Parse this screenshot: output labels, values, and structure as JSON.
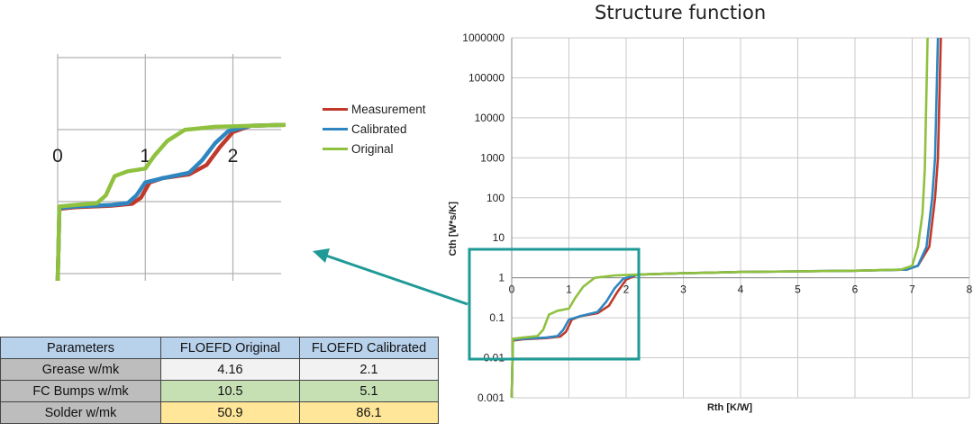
{
  "chart_data": [
    {
      "type": "line",
      "title": "Structure function",
      "xlabel": "Rth [K/W]",
      "ylabel": "Cth [W*s/K]",
      "xlim": [
        0,
        8
      ],
      "ylim": [
        0.001,
        1000000
      ],
      "yscale": "log",
      "xticks": [
        "0",
        "1",
        "2",
        "3",
        "4",
        "5",
        "6",
        "7",
        "8"
      ],
      "yticks": [
        "0.001",
        "0.01",
        "0.1",
        "1",
        "10",
        "100",
        "1000",
        "10000",
        "100000",
        "1000000"
      ],
      "grid": true,
      "series": [
        {
          "name": "Measurement",
          "color": "#c0392b",
          "points": [
            [
              0,
              0.001
            ],
            [
              0.01,
              0.005
            ],
            [
              0.02,
              0.027
            ],
            [
              0.2,
              0.029
            ],
            [
              0.6,
              0.031
            ],
            [
              0.85,
              0.034
            ],
            [
              0.95,
              0.045
            ],
            [
              1.05,
              0.09
            ],
            [
              1.2,
              0.11
            ],
            [
              1.5,
              0.13
            ],
            [
              1.7,
              0.2
            ],
            [
              1.85,
              0.45
            ],
            [
              2.0,
              0.9
            ],
            [
              2.2,
              1.2
            ],
            [
              3,
              1.3
            ],
            [
              4,
              1.4
            ],
            [
              5,
              1.45
            ],
            [
              6,
              1.5
            ],
            [
              6.9,
              1.6
            ],
            [
              7.1,
              2
            ],
            [
              7.3,
              6
            ],
            [
              7.4,
              100
            ],
            [
              7.45,
              1000
            ],
            [
              7.5,
              1000000
            ]
          ]
        },
        {
          "name": "Calibrated",
          "color": "#2e86c1",
          "points": [
            [
              0,
              0.001
            ],
            [
              0.01,
              0.005
            ],
            [
              0.02,
              0.028
            ],
            [
              0.2,
              0.03
            ],
            [
              0.6,
              0.032
            ],
            [
              0.8,
              0.035
            ],
            [
              0.9,
              0.05
            ],
            [
              1.0,
              0.09
            ],
            [
              1.2,
              0.11
            ],
            [
              1.5,
              0.14
            ],
            [
              1.65,
              0.25
            ],
            [
              1.8,
              0.55
            ],
            [
              1.95,
              0.95
            ],
            [
              2.2,
              1.2
            ],
            [
              3,
              1.3
            ],
            [
              4,
              1.4
            ],
            [
              5,
              1.45
            ],
            [
              6,
              1.5
            ],
            [
              6.9,
              1.6
            ],
            [
              7.1,
              2
            ],
            [
              7.25,
              6
            ],
            [
              7.35,
              100
            ],
            [
              7.4,
              1000
            ],
            [
              7.45,
              1000000
            ]
          ]
        },
        {
          "name": "Original",
          "color": "#8fc13e",
          "points": [
            [
              0,
              0.001
            ],
            [
              0.01,
              0.005
            ],
            [
              0.02,
              0.03
            ],
            [
              0.2,
              0.032
            ],
            [
              0.45,
              0.035
            ],
            [
              0.55,
              0.05
            ],
            [
              0.65,
              0.12
            ],
            [
              0.8,
              0.15
            ],
            [
              1.0,
              0.17
            ],
            [
              1.1,
              0.3
            ],
            [
              1.25,
              0.6
            ],
            [
              1.45,
              1.0
            ],
            [
              1.8,
              1.15
            ],
            [
              2.2,
              1.2
            ],
            [
              3,
              1.3
            ],
            [
              4,
              1.4
            ],
            [
              5,
              1.45
            ],
            [
              6,
              1.5
            ],
            [
              6.8,
              1.6
            ],
            [
              7.0,
              2
            ],
            [
              7.1,
              6
            ],
            [
              7.18,
              40
            ],
            [
              7.22,
              500
            ],
            [
              7.27,
              1000000
            ]
          ]
        }
      ]
    },
    {
      "type": "line",
      "title": "",
      "xlim": [
        0,
        2.6
      ],
      "xticks": [
        "0",
        "1",
        "2"
      ],
      "grid": true,
      "series": [
        {
          "name": "Measurement",
          "color": "#c0392b"
        },
        {
          "name": "Calibrated",
          "color": "#2e86c1"
        },
        {
          "name": "Original",
          "color": "#8fc13e"
        }
      ]
    }
  ],
  "legend": {
    "items": [
      {
        "label": "Measurement",
        "color": "#c0392b"
      },
      {
        "label": "Calibrated",
        "color": "#2e86c1"
      },
      {
        "label": "Original",
        "color": "#8fc13e"
      }
    ]
  },
  "table": {
    "headers": [
      "Parameters",
      "FLOEFD Original",
      "FLOEFD Calibrated"
    ],
    "rows": [
      {
        "name": "Grease w/mk",
        "original": "4.16",
        "calibrated": "2.1",
        "bg": "#f2f2f2"
      },
      {
        "name": "FC Bumps w/mk",
        "original": "10.5",
        "calibrated": "5.1",
        "bg": "#c6e0b4"
      },
      {
        "name": "Solder w/mk",
        "original": "50.9",
        "calibrated": "86.1",
        "bg": "#ffe699"
      }
    ]
  },
  "colors": {
    "highlight_box": "#1f9a96",
    "arrow": "#1f9a96",
    "grid": "#c8c8c8"
  }
}
